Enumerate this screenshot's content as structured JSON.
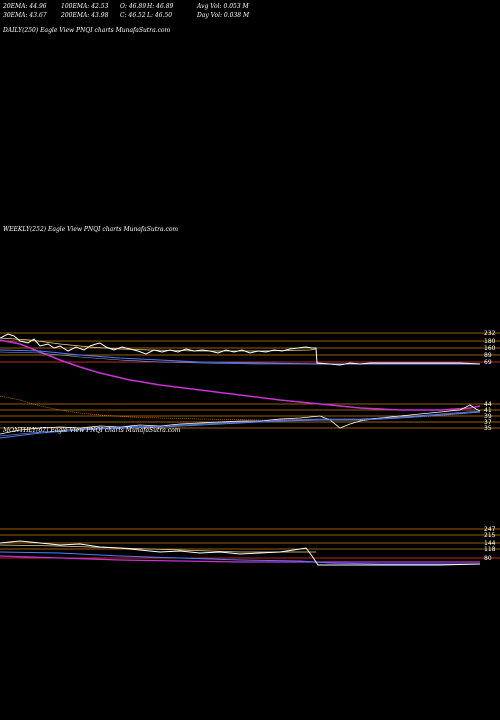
{
  "stats": {
    "row1": [
      "20EMA: 44.96",
      "100EMA: 42.53",
      "O: 46.89",
      "H: 46.89",
      "Avg Vol: 0.053  M"
    ],
    "row2": [
      "30EMA: 43.67",
      "200EMA: 43.98",
      "C: 46.52",
      "L: 46.50",
      "Day Vol: 0.038  M"
    ]
  },
  "panels": {
    "daily_label": "DAILY(250) Eagle   View  PNQI charts MunafaSutra.com",
    "weekly_label": "WEEKLY(252) Eagle   View  PNQI charts MunafaSutra.com",
    "monthly_label": "MONTHLY(67) Eagle   View  PNQI charts MunafaSutra.com"
  },
  "chart_data": [
    {
      "type": "line",
      "name": "weekly",
      "levels": [
        {
          "label": "232",
          "color": "#cc7a00"
        },
        {
          "label": "180",
          "color": "#cc7a00"
        },
        {
          "label": "160",
          "color": "#cc7a00"
        },
        {
          "label": "89",
          "color": "#cc7a00"
        },
        {
          "label": "69",
          "color": "#ff3333"
        },
        {
          "label": "44",
          "color": "#cc7a00"
        },
        {
          "label": "41",
          "color": "#cc7a00"
        },
        {
          "label": "39",
          "color": "#cc7a00"
        },
        {
          "label": "37",
          "color": "#cc7a00"
        },
        {
          "label": "35",
          "color": "#cc7a00"
        }
      ],
      "series_colors": {
        "price": "#ffffff",
        "ema_fast": "#4f7bff",
        "ema_slow": "#c832d2",
        "ema_mid": "#ff8c00",
        "pale": "#e8d890"
      }
    },
    {
      "type": "line",
      "name": "monthly",
      "levels": [
        {
          "label": "247",
          "color": "#cc7a00"
        },
        {
          "label": "215",
          "color": "#cc7a00"
        },
        {
          "label": "144",
          "color": "#cc7a00"
        },
        {
          "label": "118",
          "color": "#cc7a00"
        },
        {
          "label": "80",
          "color": "#ff3333"
        }
      ]
    }
  ]
}
